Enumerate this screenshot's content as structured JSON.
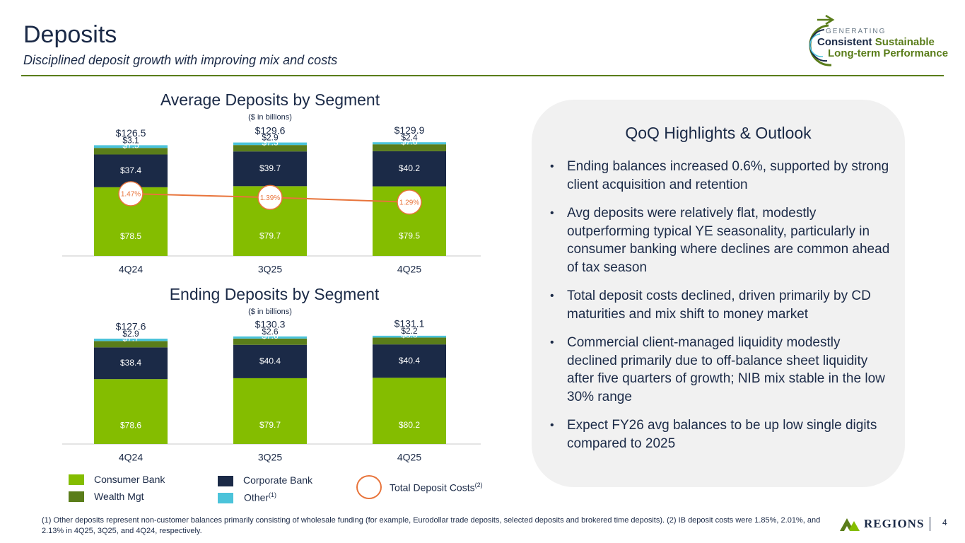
{
  "header": {
    "title": "Deposits",
    "subtitle": "Disciplined deposit growth with improving mix and costs"
  },
  "logo": {
    "line0": "GENERATING",
    "line1a": "Consistent",
    "line1b": "Sustainable",
    "line2": "Long-term Performance"
  },
  "colors": {
    "consumer": "#84bd00",
    "wealth": "#5a7d1a",
    "corporate": "#1b2a47",
    "other": "#4bc3da",
    "cost": "#e8743b"
  },
  "chart_data": [
    {
      "type": "bar",
      "title": "Average Deposits by Segment",
      "subtitle": "($ in billions)",
      "categories": [
        "4Q24",
        "3Q25",
        "4Q25"
      ],
      "series": [
        {
          "name": "Consumer Bank",
          "values": [
            78.5,
            79.7,
            79.5
          ],
          "labels": [
            "$78.5",
            "$79.7",
            "$79.5"
          ]
        },
        {
          "name": "Corporate Bank",
          "values": [
            37.4,
            39.7,
            40.2
          ],
          "labels": [
            "$37.4",
            "$39.7",
            "$40.2"
          ]
        },
        {
          "name": "Wealth Mgt",
          "values": [
            7.5,
            7.3,
            7.8
          ],
          "labels": [
            "$7.5",
            "$7.3",
            "$7.8"
          ]
        },
        {
          "name": "Other",
          "values": [
            3.1,
            2.9,
            2.4
          ],
          "labels": [
            "$3.1",
            "$2.9",
            "$2.4"
          ]
        }
      ],
      "totals": [
        "$126.5",
        "$129.6",
        "$129.9"
      ],
      "line": {
        "name": "Total Deposit Costs",
        "values": [
          1.47,
          1.39,
          1.29
        ],
        "labels": [
          "1.47%",
          "1.39%",
          "1.29%"
        ]
      }
    },
    {
      "type": "bar",
      "title": "Ending Deposits by Segment",
      "subtitle": "($ in billions)",
      "categories": [
        "4Q24",
        "3Q25",
        "4Q25"
      ],
      "series": [
        {
          "name": "Consumer Bank",
          "values": [
            78.6,
            79.7,
            80.2
          ],
          "labels": [
            "$78.6",
            "$79.7",
            "$80.2"
          ]
        },
        {
          "name": "Corporate Bank",
          "values": [
            38.4,
            40.4,
            40.4
          ],
          "labels": [
            "$38.4",
            "$40.4",
            "$40.4"
          ]
        },
        {
          "name": "Wealth Mgt",
          "values": [
            7.7,
            7.6,
            8.3
          ],
          "labels": [
            "$7.7",
            "$7.6",
            "$8.3"
          ]
        },
        {
          "name": "Other",
          "values": [
            2.9,
            2.6,
            2.2
          ],
          "labels": [
            "$2.9",
            "$2.6",
            "$2.2"
          ]
        }
      ],
      "totals": [
        "$127.6",
        "$130.3",
        "$131.1"
      ]
    }
  ],
  "legend": {
    "consumer": "Consumer Bank",
    "wealth": "Wealth Mgt",
    "corporate": "Corporate Bank",
    "other": "Other",
    "other_sup": "(1)",
    "cost": "Total Deposit Costs",
    "cost_sup": "(2)"
  },
  "highlights": {
    "title": "QoQ Highlights & Outlook",
    "bullet": "•",
    "items": [
      "Ending balances increased 0.6%, supported by strong client acquisition and retention",
      "Avg deposits were relatively flat, modestly outperforming typical YE seasonality, particularly in consumer banking where declines are common ahead of tax season",
      "Total deposit costs declined, driven primarily by CD maturities and mix shift to money market",
      "Commercial client-managed liquidity modestly declined primarily due to off-balance sheet liquidity after five quarters of growth; NIB mix stable in the low 30% range",
      "Expect FY26 avg balances to be up low single digits compared to 2025"
    ]
  },
  "footnote": "(1) Other deposits represent non-customer balances primarily consisting of wholesale funding (for example, Eurodollar trade deposits, selected deposits and brokered time deposits).  (2) IB deposit costs were 1.85%, 2.01%, and 2.13% in 4Q25, 3Q25, and 4Q24, respectively.",
  "brand": {
    "name": "REGIONS",
    "icon": "regions-pyramid-icon"
  },
  "page_number": "4"
}
